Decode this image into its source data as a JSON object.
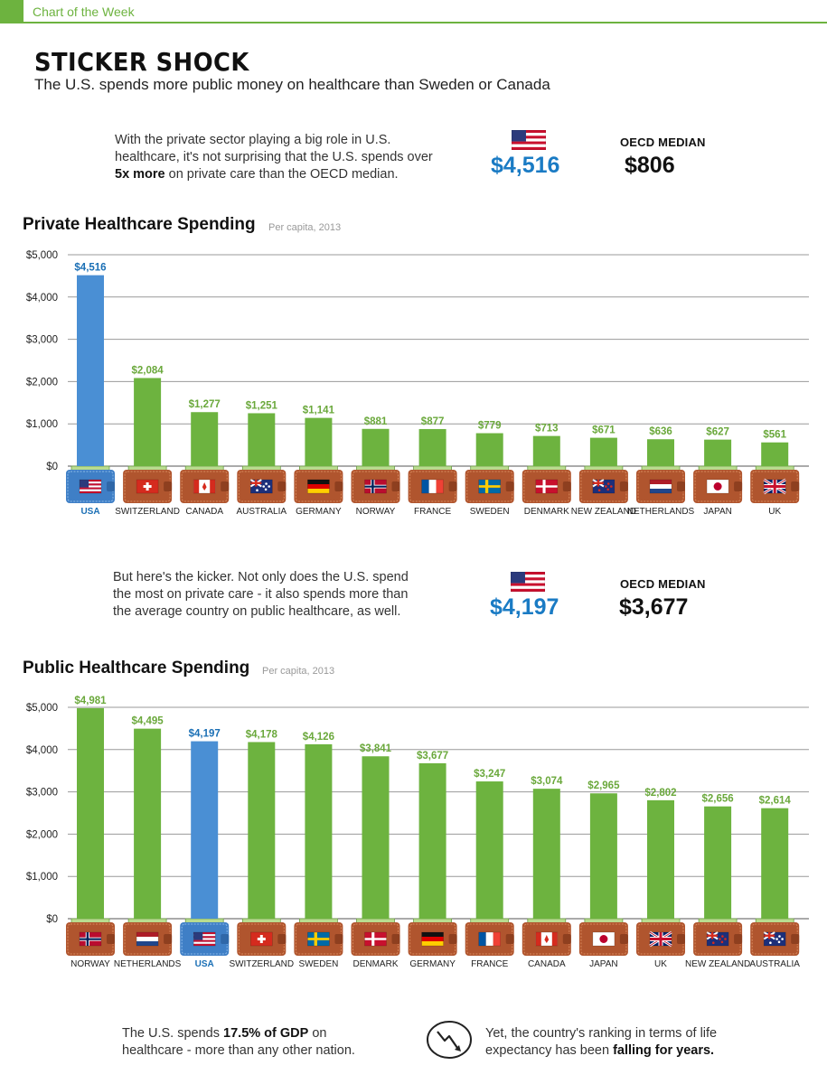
{
  "header": {
    "tag": "Chart of the Week"
  },
  "title": "STICKER SHOCK",
  "subtitle": "The U.S. spends more public money on healthcare than Sweden or Canada",
  "private_intro": {
    "text_a": "With the private sector playing a big role in U.S. healthcare, it's not surprising that the U.S. spends over ",
    "text_bold": "5x more",
    "text_b": " on private care than the OECD median.",
    "us_value": "$4,516",
    "median_label": "OECD MEDIAN",
    "median_value": "$806"
  },
  "public_intro": {
    "text": "But here's the kicker. Not only does the U.S. spend the most on private care - it also spends more than the average country on public healthcare, as well.",
    "us_value": "$4,197",
    "median_label": "OECD MEDIAN",
    "median_value": "$3,677"
  },
  "footer": {
    "left_a": "The U.S. spends ",
    "left_bold": "17.5% of GDP",
    "left_b": " on healthcare - more than any other nation.",
    "right_a": "Yet, the country's ranking in terms of life expectancy has been ",
    "right_bold": "falling for years."
  },
  "colors": {
    "green": "#6db33f",
    "blue": "#4a8fd4",
    "wallet": "#b0552e",
    "accent_blue": "#1a7bc4"
  },
  "chart_data": [
    {
      "type": "bar",
      "title": "Private Healthcare Spending",
      "note": "Per capita, 2013",
      "categories": [
        "USA",
        "SWITZERLAND",
        "CANADA",
        "AUSTRALIA",
        "GERMANY",
        "NORWAY",
        "FRANCE",
        "SWEDEN",
        "DENMARK",
        "NEW ZEALAND",
        "NETHERLANDS",
        "JAPAN",
        "UK"
      ],
      "values": [
        4516,
        2084,
        1277,
        1251,
        1141,
        881,
        877,
        779,
        713,
        671,
        636,
        627,
        561
      ],
      "labels": [
        "$4,516",
        "$2,084",
        "$1,277",
        "$1,251",
        "$1,141",
        "$881",
        "$877",
        "$779",
        "$713",
        "$671",
        "$636",
        "$627",
        "$561"
      ],
      "flags": [
        "usa",
        "switzerland",
        "canada",
        "australia",
        "germany",
        "norway",
        "france",
        "sweden",
        "denmark",
        "new-zealand",
        "netherlands",
        "japan",
        "uk"
      ],
      "highlight": "USA",
      "ylim": [
        0,
        5000
      ],
      "yticks": [
        "$0",
        "$1,000",
        "$2,000",
        "$3,000",
        "$4,000",
        "$5,000"
      ],
      "ytick_values": [
        0,
        1000,
        2000,
        3000,
        4000,
        5000
      ],
      "grid": true
    },
    {
      "type": "bar",
      "title": "Public Healthcare Spending",
      "note": "Per capita, 2013",
      "categories": [
        "NORWAY",
        "NETHERLANDS",
        "USA",
        "SWITZERLAND",
        "SWEDEN",
        "DENMARK",
        "GERMANY",
        "FRANCE",
        "CANADA",
        "JAPAN",
        "UK",
        "NEW ZEALAND",
        "AUSTRALIA"
      ],
      "values": [
        4981,
        4495,
        4197,
        4178,
        4126,
        3841,
        3677,
        3247,
        3074,
        2965,
        2802,
        2656,
        2614
      ],
      "labels": [
        "$4,981",
        "$4,495",
        "$4,197",
        "$4,178",
        "$4,126",
        "$3,841",
        "$3,677",
        "$3,247",
        "$3,074",
        "$2,965",
        "$2,802",
        "$2,656",
        "$2,614"
      ],
      "flags": [
        "norway",
        "netherlands",
        "usa",
        "switzerland",
        "sweden",
        "denmark",
        "germany",
        "france",
        "canada",
        "japan",
        "uk",
        "new-zealand",
        "australia"
      ],
      "highlight": "USA",
      "ylim": [
        0,
        5000
      ],
      "yticks": [
        "$0",
        "$1,000",
        "$2,000",
        "$3,000",
        "$4,000",
        "$5,000"
      ],
      "ytick_values": [
        0,
        1000,
        2000,
        3000,
        4000,
        5000
      ],
      "grid": true
    }
  ]
}
